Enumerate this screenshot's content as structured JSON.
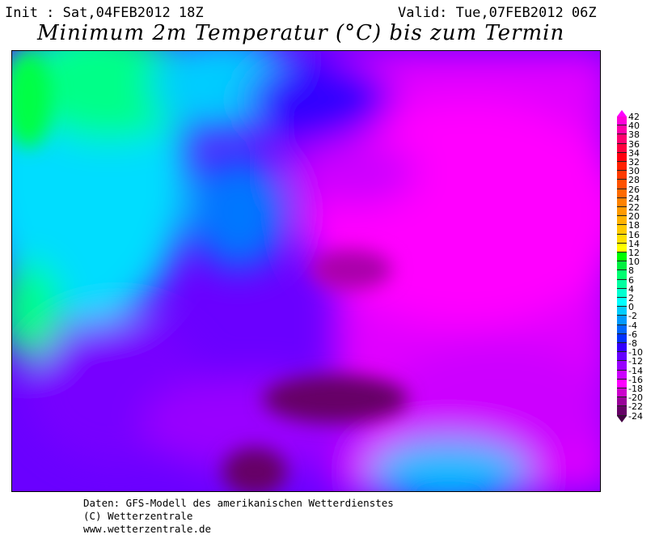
{
  "header": {
    "init": "Init : Sat,04FEB2012 18Z",
    "valid": "Valid: Tue,07FEB2012 06Z",
    "title": "Minimum 2m Temperatur (°C) bis zum Termin"
  },
  "legend": {
    "unit": "°C",
    "labels": [
      "42",
      "40",
      "38",
      "36",
      "34",
      "32",
      "30",
      "28",
      "26",
      "24",
      "22",
      "20",
      "18",
      "16",
      "14",
      "12",
      "10",
      "8",
      "6",
      "4",
      "2",
      "0",
      "-2",
      "-4",
      "-6",
      "-8",
      "-10",
      "-12",
      "-14",
      "-16",
      "-18",
      "-20",
      "-22",
      "-24"
    ],
    "colors": [
      "#ff00d8",
      "#ff00a8",
      "#ff0070",
      "#ff0040",
      "#ff0010",
      "#ff2000",
      "#ff3a00",
      "#ff5200",
      "#ff6a00",
      "#ff8200",
      "#ff9a00",
      "#ffb200",
      "#ffca00",
      "#ffe000",
      "#ffff00",
      "#00ff00",
      "#00f040",
      "#00ff70",
      "#00ffa0",
      "#00ffd0",
      "#00ffff",
      "#00ccff",
      "#0099ff",
      "#0066ff",
      "#0033ff",
      "#3300ff",
      "#6600ff",
      "#9900ff",
      "#cc00ff",
      "#ff00ff",
      "#cc00cc",
      "#990099",
      "#660066"
    ],
    "top_arrow_color": "#ff00ff",
    "bottom_arrow_color": "#440044"
  },
  "footer": {
    "line1": "Daten: GFS-Modell des amerikanischen Wetterdienstes",
    "line2": "(C) Wetterzentrale",
    "line3": "www.wetterzentrale.de"
  }
}
